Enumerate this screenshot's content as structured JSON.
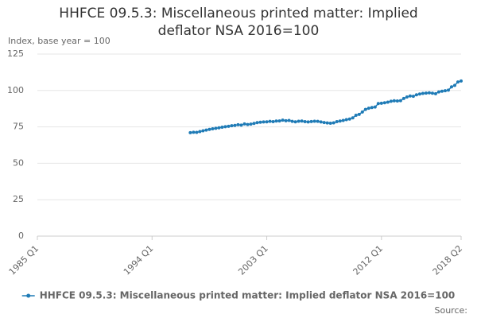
{
  "chart_data": {
    "type": "line",
    "title": "HHFCE 09.5.3: Miscellaneous printed matter: Implied deflator NSA 2016=100",
    "y_label": "Index, base year = 100",
    "source": "Source:",
    "categories": [
      "1985 Q1",
      null,
      null,
      null,
      null,
      null,
      null,
      null,
      null,
      null,
      null,
      null,
      null,
      null,
      null,
      null,
      null,
      null,
      null,
      null,
      null,
      null,
      null,
      null,
      null,
      null,
      null,
      null,
      null,
      null,
      null,
      null,
      null,
      null,
      null,
      null,
      "1994 Q1",
      null,
      null,
      null,
      null,
      null,
      null,
      null,
      null,
      null,
      null,
      null,
      null,
      null,
      null,
      null,
      null,
      null,
      null,
      null,
      null,
      null,
      null,
      null,
      null,
      null,
      null,
      null,
      null,
      null,
      null,
      null,
      null,
      null,
      null,
      null,
      "2003 Q1",
      null,
      null,
      null,
      null,
      null,
      null,
      null,
      null,
      null,
      null,
      null,
      null,
      null,
      null,
      null,
      null,
      null,
      null,
      null,
      null,
      null,
      null,
      null,
      null,
      null,
      null,
      null,
      null,
      null,
      null,
      null,
      null,
      null,
      null,
      null,
      "2012 Q1",
      null,
      null,
      null,
      null,
      null,
      null,
      null,
      null,
      null,
      null,
      null,
      null,
      null,
      null,
      null,
      null,
      null,
      null,
      null,
      null,
      null,
      null,
      null,
      null,
      "2018 Q2"
    ],
    "series": [
      {
        "name": "HHFCE 09.5.3: Miscellaneous printed matter: Implied deflator NSA 2016=100",
        "color": "#1f7bb6",
        "values": [
          null,
          null,
          null,
          null,
          null,
          null,
          null,
          null,
          null,
          null,
          null,
          null,
          null,
          null,
          null,
          null,
          null,
          null,
          null,
          null,
          null,
          null,
          null,
          null,
          null,
          null,
          null,
          null,
          null,
          null,
          null,
          null,
          null,
          null,
          null,
          null,
          null,
          null,
          null,
          null,
          null,
          null,
          null,
          null,
          null,
          null,
          null,
          null,
          71.0,
          71.3,
          71.2,
          71.8,
          72.3,
          72.8,
          73.3,
          73.7,
          74.0,
          74.4,
          74.8,
          75.1,
          75.4,
          75.8,
          76.0,
          76.5,
          76.2,
          77.0,
          76.6,
          76.9,
          77.4,
          77.9,
          78.2,
          78.4,
          78.5,
          78.8,
          78.6,
          79.0,
          79.1,
          79.6,
          79.2,
          79.4,
          78.8,
          78.5,
          78.9,
          79.0,
          78.6,
          78.4,
          78.7,
          78.9,
          78.8,
          78.4,
          78.0,
          77.7,
          77.5,
          77.8,
          78.6,
          79.0,
          79.4,
          80.0,
          80.4,
          81.2,
          83.0,
          83.6,
          85.2,
          87.0,
          87.8,
          88.3,
          88.6,
          91.0,
          91.2,
          91.6,
          92.0,
          92.6,
          92.9,
          92.8,
          93.0,
          94.5,
          95.5,
          96.2,
          96.0,
          97.0,
          97.6,
          98.0,
          98.2,
          98.4,
          98.1,
          97.8,
          99.0,
          99.5,
          99.8,
          100.2,
          102.5,
          103.5,
          105.8,
          106.5
        ]
      }
    ],
    "ylim": [
      0,
      125
    ],
    "yticks": [
      0,
      25,
      50,
      75,
      100,
      125
    ],
    "grid": true
  }
}
